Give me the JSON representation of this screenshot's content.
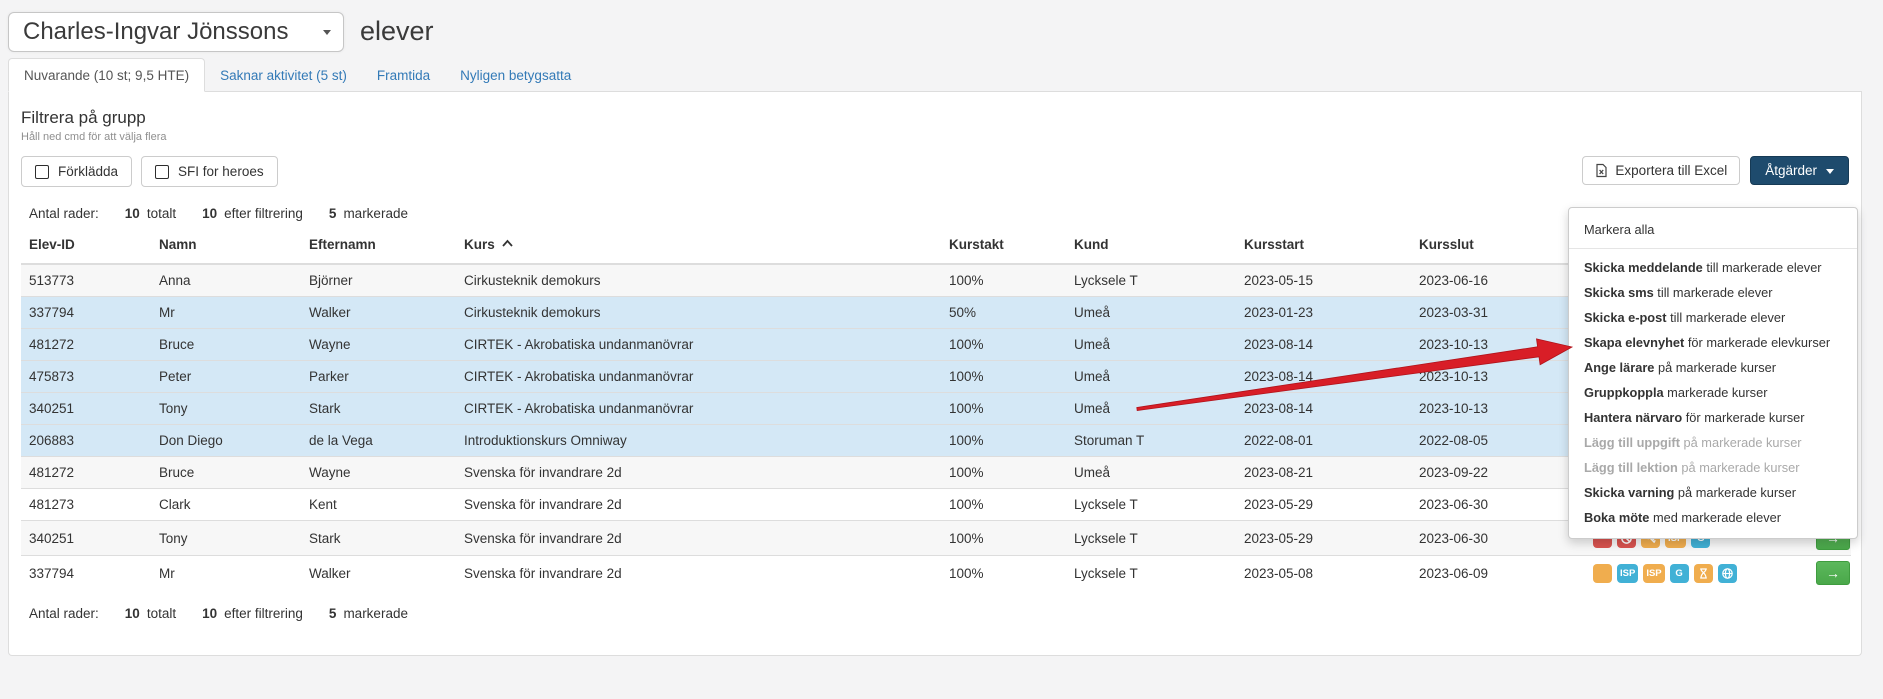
{
  "page": {
    "student_selector_value": "Charles-Ingvar Jönssons",
    "title_suffix": "elever"
  },
  "tabs": [
    {
      "label": "Nuvarande (10 st; 9,5 HTE)",
      "active": true
    },
    {
      "label": "Saknar aktivitet (5 st)",
      "active": false
    },
    {
      "label": "Framtida",
      "active": false
    },
    {
      "label": "Nyligen betygsatta",
      "active": false
    }
  ],
  "filter": {
    "title": "Filtrera på grupp",
    "hint": "Håll ned cmd för att välja flera",
    "groups": [
      {
        "label": "Förklädda",
        "checked": false
      },
      {
        "label": "SFI for heroes",
        "checked": false
      }
    ]
  },
  "toolbar": {
    "export_label": "Exportera till Excel",
    "actions_label": "Åtgärder"
  },
  "row_counts": {
    "label": "Antal rader:",
    "total_value": "10",
    "total_label": "totalt",
    "filtered_value": "10",
    "filtered_label": "efter filtrering",
    "selected_value": "5",
    "selected_label": "markerade"
  },
  "table": {
    "columns": [
      "Elev-ID",
      "Namn",
      "Efternamn",
      "Kurs",
      "Kurstakt",
      "Kund",
      "Kursstart",
      "Kursslut"
    ],
    "sorted_column": "Kurs",
    "sort_direction": "ascending",
    "rows": [
      {
        "elev_id": "513773",
        "namn": "Anna",
        "efternamn": "Björner",
        "kurs": "Cirkusteknik demokurs",
        "kurstakt": "100%",
        "kund": "Lycksele T",
        "kursstart": "2023-05-15",
        "kursslut": "2023-06-16",
        "selected": false,
        "badges": [],
        "action_button": false
      },
      {
        "elev_id": "337794",
        "namn": "Mr",
        "efternamn": "Walker",
        "kurs": "Cirkusteknik demokurs",
        "kurstakt": "50%",
        "kund": "Umeå",
        "kursstart": "2023-01-23",
        "kursslut": "2023-03-31",
        "selected": true,
        "badges": [],
        "action_button": false
      },
      {
        "elev_id": "481272",
        "namn": "Bruce",
        "efternamn": "Wayne",
        "kurs": "CIRTEK - Akrobatiska undanmanövrar",
        "kurstakt": "100%",
        "kund": "Umeå",
        "kursstart": "2023-08-14",
        "kursslut": "2023-10-13",
        "selected": true,
        "badges": [],
        "action_button": false
      },
      {
        "elev_id": "475873",
        "namn": "Peter",
        "efternamn": "Parker",
        "kurs": "CIRTEK - Akrobatiska undanmanövrar",
        "kurstakt": "100%",
        "kund": "Umeå",
        "kursstart": "2023-08-14",
        "kursslut": "2023-10-13",
        "selected": true,
        "badges": [],
        "action_button": false
      },
      {
        "elev_id": "340251",
        "namn": "Tony",
        "efternamn": "Stark",
        "kurs": "CIRTEK - Akrobatiska undanmanövrar",
        "kurstakt": "100%",
        "kund": "Umeå",
        "kursstart": "2023-08-14",
        "kursslut": "2023-10-13",
        "selected": true,
        "badges": [],
        "action_button": false
      },
      {
        "elev_id": "206883",
        "namn": "Don Diego",
        "efternamn": "de la Vega",
        "kurs": "Introduktionskurs Omniway",
        "kurstakt": "100%",
        "kund": "Storuman T",
        "kursstart": "2022-08-01",
        "kursslut": "2022-08-05",
        "selected": true,
        "badges": [],
        "action_button": false
      },
      {
        "elev_id": "481272",
        "namn": "Bruce",
        "efternamn": "Wayne",
        "kurs": "Svenska för invandrare 2d",
        "kurstakt": "100%",
        "kund": "Umeå",
        "kursstart": "2023-08-21",
        "kursslut": "2023-09-22",
        "selected": false,
        "badges": [],
        "action_button": false
      },
      {
        "elev_id": "481273",
        "namn": "Clark",
        "efternamn": "Kent",
        "kurs": "Svenska för invandrare 2d",
        "kurstakt": "100%",
        "kund": "Lycksele T",
        "kursstart": "2023-05-29",
        "kursslut": "2023-06-30",
        "selected": false,
        "badges": [],
        "action_button": false
      },
      {
        "elev_id": "340251",
        "namn": "Tony",
        "efternamn": "Stark",
        "kurs": "Svenska för invandrare 2d",
        "kurstakt": "100%",
        "kund": "Lycksele T",
        "kursstart": "2023-05-29",
        "kursslut": "2023-06-30",
        "selected": false,
        "action_button": true,
        "badges": [
          {
            "icon": "plain-status-icon",
            "color": "red",
            "text": ""
          },
          {
            "icon": "no-entry-icon",
            "color": "red",
            "text": ""
          },
          {
            "icon": "key-icon",
            "color": "orange",
            "text": ""
          },
          {
            "icon": "text-badge",
            "color": "orange",
            "text": "ISP"
          },
          {
            "icon": "text-badge",
            "color": "blue",
            "text": "G"
          }
        ]
      },
      {
        "elev_id": "337794",
        "namn": "Mr",
        "efternamn": "Walker",
        "kurs": "Svenska för invandrare 2d",
        "kurstakt": "100%",
        "kund": "Lycksele T",
        "kursstart": "2023-05-08",
        "kursslut": "2023-06-09",
        "selected": false,
        "action_button": true,
        "badges": [
          {
            "icon": "plain-status-icon",
            "color": "orange",
            "text": ""
          },
          {
            "icon": "text-badge",
            "color": "blue",
            "text": "ISP"
          },
          {
            "icon": "text-badge",
            "color": "orange",
            "text": "ISP"
          },
          {
            "icon": "text-badge",
            "color": "blue",
            "text": "G"
          },
          {
            "icon": "hourglass-icon",
            "color": "orange",
            "text": ""
          },
          {
            "icon": "globe-icon",
            "color": "blue",
            "text": ""
          }
        ]
      }
    ]
  },
  "actions_menu": {
    "header": "Markera alla",
    "items": [
      {
        "bold": "Skicka meddelande",
        "rest": "till markerade elever",
        "disabled": false
      },
      {
        "bold": "Skicka sms",
        "rest": "till markerade elever",
        "disabled": false
      },
      {
        "bold": "Skicka e-post",
        "rest": "till markerade elever",
        "disabled": false
      },
      {
        "bold": "Skapa elevnyhet",
        "rest": "för markerade elevkurser",
        "disabled": false,
        "arrow_target": true
      },
      {
        "bold": "Ange lärare",
        "rest": "på markerade kurser",
        "disabled": false
      },
      {
        "bold": "Gruppkoppla",
        "rest": "markerade kurser",
        "disabled": false
      },
      {
        "bold": "Hantera närvaro",
        "rest": "för markerade kurser",
        "disabled": false
      },
      {
        "bold": "Lägg till uppgift",
        "rest": "på markerade kurser",
        "disabled": true
      },
      {
        "bold": "Lägg till lektion",
        "rest": "på markerade kurser",
        "disabled": true
      },
      {
        "bold": "Skicka varning",
        "rest": "på markerade kurser",
        "disabled": false
      },
      {
        "bold": "Boka möte",
        "rest": "med markerade elever",
        "disabled": false
      }
    ]
  },
  "colors": {
    "page_background": "#f4f4f5",
    "accent_navy": "#1e4b6d",
    "link_blue": "#337ab7",
    "selected_row_blue": "#d4e8f6",
    "badge_red": "#d9534f",
    "badge_orange": "#f0ad4e",
    "badge_blue": "#41b1d6",
    "button_green": "#5cb85c",
    "annotation_arrow_red": "#d81e27"
  }
}
